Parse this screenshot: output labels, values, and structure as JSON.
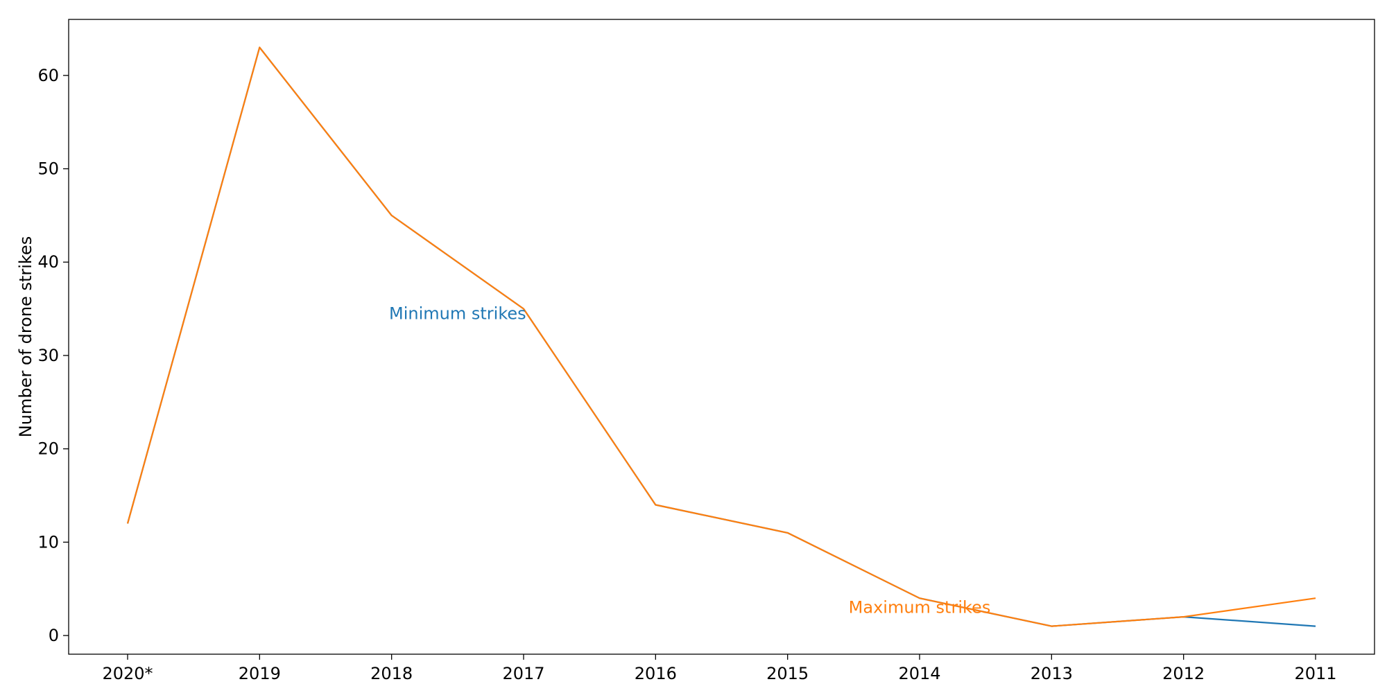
{
  "chart_data": {
    "type": "line",
    "categories": [
      "2020*",
      "2019",
      "2018",
      "2017",
      "2016",
      "2015",
      "2014",
      "2013",
      "2012",
      "2011"
    ],
    "series": [
      {
        "name": "Minimum strikes",
        "color": "#1f77b4",
        "values": [
          12,
          63,
          45,
          35,
          14,
          11,
          4,
          1,
          2,
          1
        ]
      },
      {
        "name": "Maximum strikes",
        "color": "#ff7f0e",
        "values": [
          12,
          63,
          45,
          35,
          14,
          11,
          4,
          1,
          2,
          4
        ]
      }
    ],
    "annotations": [
      {
        "text": "Minimum strikes",
        "series": 0,
        "x": 2.5,
        "y": 34.5
      },
      {
        "text": "Maximum strikes",
        "series": 1,
        "x": 6.0,
        "y": 3.0
      }
    ],
    "title": "",
    "xlabel": "",
    "ylabel": "Number of drone strikes",
    "ylim": [
      -2,
      66
    ],
    "yticks": [
      0,
      10,
      20,
      30,
      40,
      50,
      60
    ],
    "grid": false,
    "legend": "none"
  }
}
